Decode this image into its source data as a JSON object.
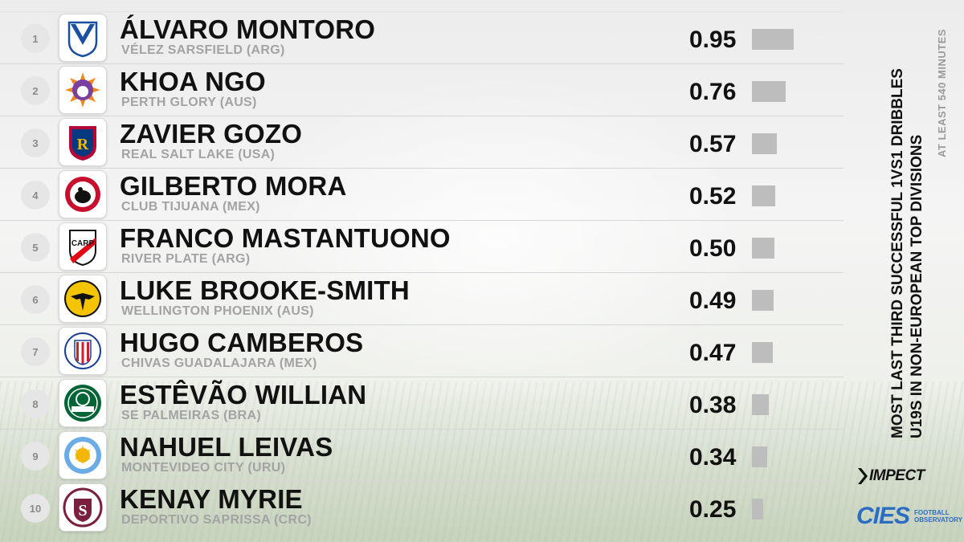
{
  "title_line1": "MOST LAST THIRD SUCCESSFUL 1VS1 DRIBBLES",
  "title_line2": "U19S IN NON-EUROPEAN TOP DIVISIONS",
  "subtitle": "AT LEAST 540 MINUTES",
  "brands": {
    "impect": "IMPECT",
    "cies": "CIES",
    "cies_sub": "FOOTBALL OBSERVATORY"
  },
  "chart_data": {
    "type": "bar",
    "orientation": "horizontal",
    "title": "MOST LAST THIRD SUCCESSFUL 1VS1 DRIBBLES U19S IN NON-EUROPEAN TOP DIVISIONS",
    "subtitle": "AT LEAST 540 MINUTES",
    "xlim": [
      0,
      1
    ],
    "bar_color": "#bdbdbd",
    "rows": [
      {
        "rank": "1",
        "player": "ÁLVARO MONTORO",
        "club": "VÉLEZ SARSFIELD (ARG)",
        "value": 0.95,
        "label": "0.95",
        "crest": "velez-crest-icon",
        "colors": [
          "#1b4fa0",
          "#ffffff"
        ]
      },
      {
        "rank": "2",
        "player": "KHOA NGO",
        "club": "PERTH GLORY (AUS)",
        "value": 0.76,
        "label": "0.76",
        "crest": "perth-glory-crest-icon",
        "colors": [
          "#7b3fa0",
          "#f08a1c"
        ]
      },
      {
        "rank": "3",
        "player": "ZAVIER GOZO",
        "club": "REAL SALT LAKE (USA)",
        "value": 0.57,
        "label": "0.57",
        "crest": "real-salt-lake-crest-icon",
        "colors": [
          "#b30838",
          "#013a81"
        ]
      },
      {
        "rank": "4",
        "player": "GILBERTO MORA",
        "club": "CLUB TIJUANA (MEX)",
        "value": 0.52,
        "label": "0.52",
        "crest": "club-tijuana-crest-icon",
        "colors": [
          "#c8102e",
          "#111111"
        ]
      },
      {
        "rank": "5",
        "player": "FRANCO MASTANTUONO",
        "club": "RIVER PLATE (ARG)",
        "value": 0.5,
        "label": "0.50",
        "crest": "river-plate-crest-icon",
        "colors": [
          "#e30613",
          "#111111"
        ]
      },
      {
        "rank": "6",
        "player": "LUKE BROOKE-SMITH",
        "club": "WELLINGTON PHOENIX (AUS)",
        "value": 0.49,
        "label": "0.49",
        "crest": "wellington-phoenix-crest-icon",
        "colors": [
          "#f5c400",
          "#111111"
        ]
      },
      {
        "rank": "7",
        "player": "HUGO CAMBEROS",
        "club": "CHIVAS GUADALAJARA (MEX)",
        "value": 0.47,
        "label": "0.47",
        "crest": "chivas-crest-icon",
        "colors": [
          "#cd1f2d",
          "#1c3f94"
        ]
      },
      {
        "rank": "8",
        "player": "ESTÊVÃO WILLIAN",
        "club": "SE PALMEIRAS (BRA)",
        "value": 0.38,
        "label": "0.38",
        "crest": "palmeiras-crest-icon",
        "colors": [
          "#006437",
          "#ffffff"
        ]
      },
      {
        "rank": "9",
        "player": "NAHUEL LEIVAS",
        "club": "MONTEVIDEO CITY (URU)",
        "value": 0.34,
        "label": "0.34",
        "crest": "montevideo-city-crest-icon",
        "colors": [
          "#6cace4",
          "#f2b705"
        ]
      },
      {
        "rank": "10",
        "player": "KENAY MYRIE",
        "club": "DEPORTIVO SAPRISSA (CRC)",
        "value": 0.25,
        "label": "0.25",
        "crest": "saprissa-crest-icon",
        "colors": [
          "#7a1f3d",
          "#ffffff"
        ]
      }
    ]
  }
}
